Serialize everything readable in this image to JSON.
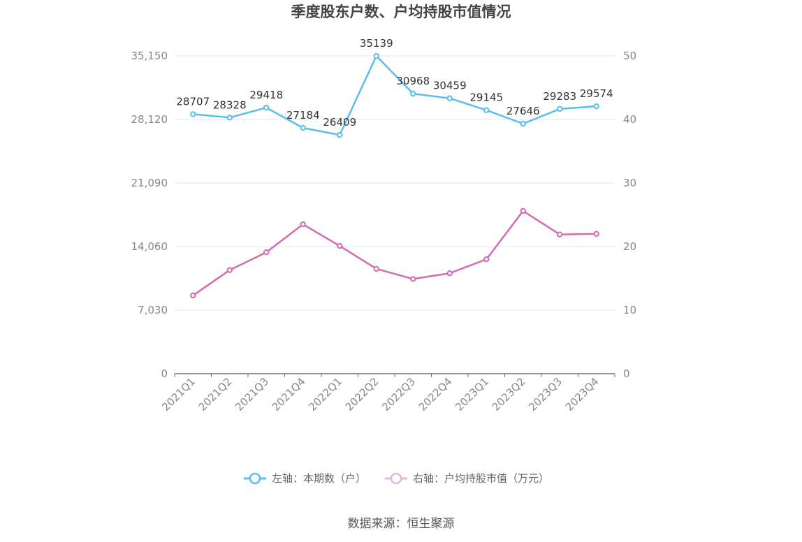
{
  "chart_data": {
    "type": "line",
    "title": "季度股东户数、户均持股市值情况",
    "categories": [
      "2021Q1",
      "2021Q2",
      "2021Q3",
      "2021Q4",
      "2022Q1",
      "2022Q2",
      "2022Q3",
      "2022Q4",
      "2023Q1",
      "2023Q2",
      "2023Q3",
      "2023Q4"
    ],
    "left_axis": {
      "ticks": [
        "0",
        "7,030",
        "14,060",
        "21,090",
        "28,120",
        "35,150"
      ],
      "min": 0,
      "max": 35150
    },
    "right_axis": {
      "ticks": [
        "0",
        "10",
        "20",
        "30",
        "40",
        "50"
      ],
      "min": 0,
      "max": 50
    },
    "series": [
      {
        "name": "左轴：本期数（户）",
        "axis": "left",
        "color": "#5bbcf0",
        "values": [
          28707,
          28328,
          29418,
          27184,
          26409,
          35139,
          30968,
          30459,
          29145,
          27646,
          29283,
          29574
        ],
        "labels": [
          "28707",
          "28328",
          "29418",
          "27184",
          "26409",
          "35139",
          "30968",
          "30459",
          "29145",
          "27646",
          "29283",
          "29574"
        ]
      },
      {
        "name": "右轴：户均持股市值（万元）",
        "axis": "right",
        "color": "#d36bb2",
        "values": [
          12.3,
          16.3,
          19.1,
          23.5,
          20.1,
          16.5,
          14.9,
          15.8,
          18.0,
          25.6,
          21.9,
          22.0
        ]
      }
    ],
    "grid": true,
    "legend_position": "bottom"
  },
  "source": "数据来源：恒生聚源"
}
